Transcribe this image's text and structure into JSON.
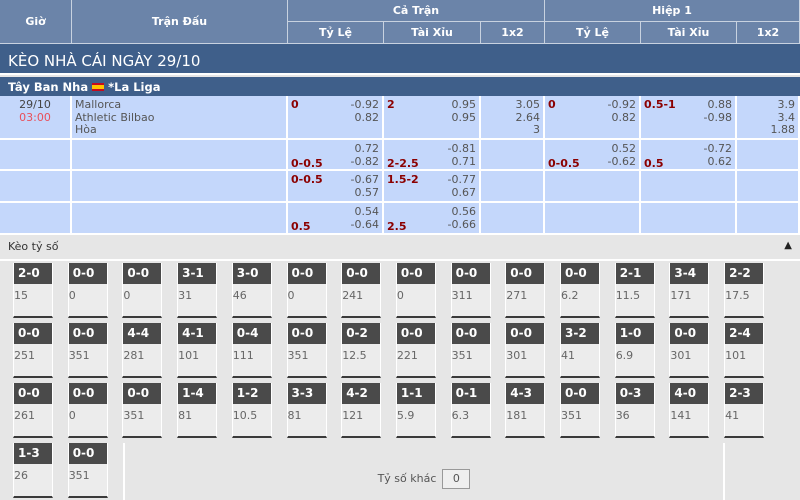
{
  "header": {
    "gio": "Giờ",
    "tran_dau": "Trận Đấu",
    "ca_tran": "Cả Trận",
    "hiep1": "Hiệp 1",
    "ty_le": "Tỷ Lệ",
    "tai_xiu": "Tài Xỉu",
    "x12": "1x2"
  },
  "title": "KÈO NHÀ CÁI NGÀY 29/10",
  "league": {
    "country": "Tây Ban Nha",
    "name": "*La Liga",
    "flag_colors": [
      "#c60b1e",
      "#ffc400"
    ]
  },
  "match": {
    "date": "29/10",
    "time": "03:00",
    "home": "Mallorca",
    "away": "Athletic Bilbao",
    "draw": "Hòa"
  },
  "rows": [
    {
      "ft_hcp": "0",
      "ft_hcp_o1": "-0.92",
      "ft_hcp_o2": "0.82",
      "ft_ou": "2",
      "ft_ou_o1": "0.95",
      "ft_ou_o2": "0.95",
      "ft_1x2": [
        "3.05",
        "2.64",
        "3"
      ],
      "h1_hcp": "0",
      "h1_hcp_o1": "-0.92",
      "h1_hcp_o2": "0.82",
      "h1_ou": "0.5-1",
      "h1_ou_o1": "0.88",
      "h1_ou_o2": "-0.98",
      "h1_1x2": [
        "3.9",
        "3.4",
        "1.88"
      ]
    },
    {
      "ft_hcp": "0-0.5",
      "ft_hcp_o1": "0.72",
      "ft_hcp_o2": "-0.82",
      "ft_ou": "2-2.5",
      "ft_ou_o1": "-0.81",
      "ft_ou_o2": "0.71",
      "h1_hcp": "0-0.5",
      "h1_hcp_o1": "0.52",
      "h1_hcp_o2": "-0.62",
      "h1_ou": "0.5",
      "h1_ou_o1": "-0.72",
      "h1_ou_o2": "0.62"
    },
    {
      "ft_hcp": "0-0.5",
      "ft_hcp_o1": "-0.67",
      "ft_hcp_o2": "0.57",
      "ft_ou": "1.5-2",
      "ft_ou_o1": "-0.77",
      "ft_ou_o2": "0.67"
    },
    {
      "ft_hcp": "0.5",
      "ft_hcp_o1": "0.54",
      "ft_hcp_o2": "-0.64",
      "ft_ou": "2.5",
      "ft_ou_o1": "0.56",
      "ft_ou_o2": "-0.66"
    }
  ],
  "score_section": {
    "title": "Kèo tỷ số",
    "collapse_icon": "caret-up-icon",
    "other_label": "Tỷ số khác",
    "other_value": "0"
  },
  "scores": [
    [
      [
        "2-0",
        "15"
      ],
      [
        "0-0",
        "0"
      ],
      [
        "0-0",
        "0"
      ],
      [
        "3-1",
        "31"
      ],
      [
        "3-0",
        "46"
      ],
      [
        "0-0",
        "0"
      ],
      [
        "0-0",
        "241"
      ],
      [
        "0-0",
        "0"
      ],
      [
        "0-0",
        "311"
      ],
      [
        "0-0",
        "271"
      ],
      [
        "0-0",
        "6.2"
      ],
      [
        "2-1",
        "11.5"
      ],
      [
        "3-4",
        "171"
      ],
      [
        "2-2",
        "17.5"
      ]
    ],
    [
      [
        "0-0",
        "251"
      ],
      [
        "0-0",
        "351"
      ],
      [
        "4-4",
        "281"
      ],
      [
        "4-1",
        "101"
      ],
      [
        "0-4",
        "111"
      ],
      [
        "0-0",
        "351"
      ],
      [
        "0-2",
        "12.5"
      ],
      [
        "0-0",
        "221"
      ],
      [
        "0-0",
        "351"
      ],
      [
        "0-0",
        "301"
      ],
      [
        "3-2",
        "41"
      ],
      [
        "1-0",
        "6.9"
      ],
      [
        "0-0",
        "301"
      ],
      [
        "2-4",
        "101"
      ]
    ],
    [
      [
        "0-0",
        "261"
      ],
      [
        "0-0",
        "0"
      ],
      [
        "0-0",
        "351"
      ],
      [
        "1-4",
        "81"
      ],
      [
        "1-2",
        "10.5"
      ],
      [
        "3-3",
        "81"
      ],
      [
        "4-2",
        "121"
      ],
      [
        "1-1",
        "5.9"
      ],
      [
        "0-1",
        "6.3"
      ],
      [
        "4-3",
        "181"
      ],
      [
        "0-0",
        "351"
      ],
      [
        "0-3",
        "36"
      ],
      [
        "4-0",
        "141"
      ],
      [
        "2-3",
        "41"
      ]
    ],
    [
      [
        "1-3",
        "26"
      ],
      [
        "0-0",
        "351"
      ]
    ]
  ]
}
